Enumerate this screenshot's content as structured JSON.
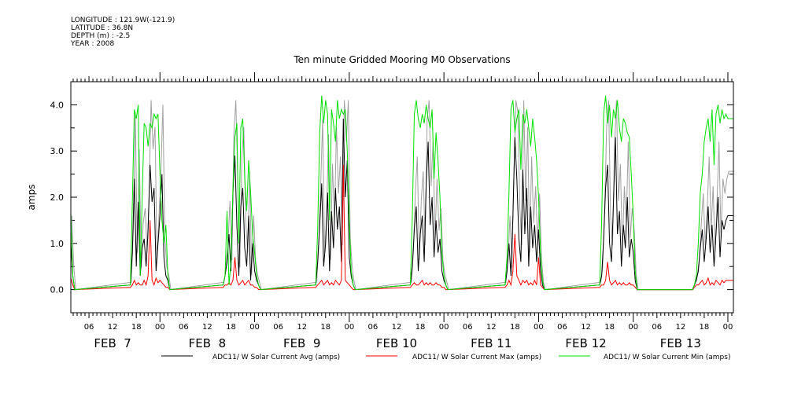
{
  "header": {
    "longitude": "LONGITUDE : 121.9W(-121.9)",
    "latitude": "LATITUDE : 36.8N",
    "depth": "DEPTH (m) : -2.5",
    "year": "YEAR : 2008"
  },
  "chart_data": {
    "type": "line",
    "title": "Ten minute Gridded Mooring M0 Observations",
    "ylabel": "amps",
    "xlabel": "",
    "x_units": "hours since FEB 7 00:00",
    "xlim": [
      1.4,
      169.4
    ],
    "ylim": [
      -0.5,
      4.5
    ],
    "yticks": [
      0.0,
      1.0,
      2.0,
      3.0,
      4.0
    ],
    "ytick_labels": [
      "0.0",
      "1.0",
      "2.0",
      "3.0",
      "4.0"
    ],
    "xtick_labels": [
      "06",
      "12",
      "18",
      "00",
      "06",
      "12",
      "18",
      "00",
      "06",
      "12",
      "18",
      "00",
      "06",
      "12",
      "18",
      "00",
      "06",
      "12",
      "18",
      "00",
      "06",
      "12",
      "18",
      "00",
      "06",
      "12",
      "18",
      "00"
    ],
    "day_labels": [
      "FEB  7",
      "FEB  8",
      "FEB  9",
      "FEB 10",
      "FEB 11",
      "FEB 12",
      "FEB 13"
    ],
    "grid": false,
    "legend_position": "bottom",
    "series": [
      {
        "name": "ADC11/ W Solar Current Avg (amps)",
        "color": "#000000",
        "segments": [
          {
            "start": 1.4,
            "step": 0.5,
            "values": [
              1.0,
              0.3,
              0.0
            ]
          },
          {
            "start": 16.5,
            "step": 0.5,
            "values": [
              0.1,
              0.8,
              2.4,
              0.5,
              1.9,
              0.3,
              0.9,
              1.1,
              0.5,
              1.3,
              2.7,
              1.9,
              2.2,
              0.4,
              1.0,
              1.6,
              2.5,
              0.7,
              0.3,
              0.2,
              0.0
            ]
          },
          {
            "start": 40.0,
            "step": 0.5,
            "values": [
              0.1,
              0.3,
              0.6,
              1.2,
              0.4,
              2.1,
              2.9,
              1.4,
              0.3,
              1.8,
              2.2,
              0.9,
              0.5,
              1.6,
              0.2,
              1.0,
              0.4,
              0.2,
              0.1,
              0.0
            ]
          },
          {
            "start": 63.5,
            "step": 0.5,
            "values": [
              0.1,
              0.6,
              1.4,
              2.3,
              0.5,
              1.0,
              2.1,
              0.4,
              1.7,
              0.9,
              2.2,
              1.3,
              1.8,
              0.6,
              3.7,
              2.0,
              2.8,
              0.7,
              0.3,
              0.1,
              0.0
            ]
          },
          {
            "start": 87.5,
            "step": 0.5,
            "values": [
              0.1,
              0.5,
              1.3,
              1.8,
              0.4,
              1.2,
              1.6,
              0.6,
              2.3,
              3.2,
              1.4,
              2.0,
              0.7,
              1.5,
              0.8,
              1.1,
              0.4,
              0.2,
              0.1,
              0.0
            ]
          },
          {
            "start": 111.5,
            "step": 0.5,
            "values": [
              0.1,
              0.4,
              1.0,
              0.3,
              1.6,
              3.3,
              2.4,
              1.1,
              0.6,
              2.6,
              1.2,
              2.2,
              0.5,
              1.8,
              0.9,
              1.4,
              0.6,
              1.3,
              0.4,
              0.1,
              0.0
            ]
          },
          {
            "start": 135.5,
            "step": 0.5,
            "values": [
              0.1,
              0.3,
              1.1,
              2.2,
              2.7,
              1.0,
              0.6,
              1.9,
              3.3,
              1.2,
              1.7,
              0.5,
              1.4,
              0.9,
              2.0,
              0.7,
              1.1,
              0.8,
              0.2,
              0.0
            ]
          },
          {
            "start": 159.0,
            "step": 0.5,
            "values": [
              0.0,
              0.1,
              0.2,
              0.4,
              0.9,
              1.3,
              0.6,
              1.1,
              1.8,
              0.8,
              1.4,
              0.5,
              1.2,
              2.0,
              0.7,
              1.5,
              1.3,
              1.5,
              1.6
            ]
          }
        ]
      },
      {
        "name": "ADC11/ W Solar Current Max (amps)",
        "color": "#ff0000",
        "segments": [
          {
            "start": 1.4,
            "step": 0.5,
            "values": [
              0.25,
              0.1,
              0.0
            ]
          },
          {
            "start": 16.5,
            "step": 0.5,
            "values": [
              0.05,
              0.1,
              0.2,
              0.1,
              0.15,
              0.1,
              0.1,
              0.2,
              0.1,
              0.3,
              1.5,
              0.2,
              0.1,
              0.25,
              0.15,
              0.2,
              0.15,
              0.1,
              0.05,
              0.05,
              0.0
            ]
          },
          {
            "start": 40.0,
            "step": 0.5,
            "values": [
              0.05,
              0.1,
              0.1,
              0.15,
              0.1,
              0.2,
              0.7,
              0.2,
              0.1,
              0.15,
              0.2,
              0.1,
              0.15,
              0.2,
              0.1,
              0.1,
              0.05,
              0.05,
              0.0,
              0.0
            ]
          },
          {
            "start": 63.5,
            "step": 0.5,
            "values": [
              0.05,
              0.1,
              0.15,
              0.2,
              0.1,
              0.15,
              0.2,
              0.1,
              0.15,
              0.1,
              0.2,
              0.15,
              0.1,
              0.2,
              2.7,
              0.2,
              0.15,
              0.1,
              0.05,
              0.0,
              0.0
            ]
          },
          {
            "start": 87.5,
            "step": 0.5,
            "values": [
              0.05,
              0.1,
              0.15,
              0.1,
              0.1,
              0.15,
              0.2,
              0.1,
              0.15,
              0.1,
              0.15,
              0.1,
              0.1,
              0.15,
              0.1,
              0.1,
              0.05,
              0.05,
              0.0,
              0.0
            ]
          },
          {
            "start": 111.5,
            "step": 0.5,
            "values": [
              0.05,
              0.1,
              0.2,
              0.1,
              0.4,
              1.2,
              0.3,
              0.2,
              0.1,
              0.2,
              0.15,
              0.2,
              0.1,
              0.15,
              0.1,
              0.2,
              0.1,
              0.7,
              0.1,
              0.05,
              0.0
            ]
          },
          {
            "start": 135.5,
            "step": 0.5,
            "values": [
              0.05,
              0.1,
              0.1,
              0.2,
              0.6,
              0.2,
              0.1,
              0.15,
              0.2,
              0.1,
              0.15,
              0.1,
              0.15,
              0.1,
              0.1,
              0.15,
              0.1,
              0.1,
              0.05,
              0.0
            ]
          },
          {
            "start": 159.0,
            "step": 0.5,
            "values": [
              0.0,
              0.05,
              0.1,
              0.1,
              0.15,
              0.2,
              0.1,
              0.15,
              0.25,
              0.1,
              0.15,
              0.1,
              0.2,
              0.15,
              0.1,
              0.2,
              0.15,
              0.2,
              0.2
            ]
          }
        ]
      },
      {
        "name": "ADC11/ W Solar Current Min (amps)",
        "color": "#00e000",
        "segments": [
          {
            "start": 1.4,
            "step": 0.5,
            "values": [
              1.65,
              0.3,
              0.0
            ]
          },
          {
            "start": 16.5,
            "step": 0.5,
            "values": [
              0.1,
              1.9,
              3.9,
              3.7,
              4.0,
              0.3,
              2.0,
              3.6,
              3.5,
              3.1,
              3.6,
              3.5,
              3.8,
              3.7,
              3.8,
              2.5,
              1.5,
              1.0,
              1.4,
              0.3,
              0.0
            ]
          },
          {
            "start": 40.0,
            "step": 0.5,
            "values": [
              0.1,
              0.3,
              1.7,
              0.1,
              0.6,
              2.2,
              3.3,
              3.6,
              1.0,
              3.5,
              3.7,
              2.4,
              1.7,
              2.8,
              2.1,
              1.2,
              0.8,
              0.3,
              0.1,
              0.0
            ]
          },
          {
            "start": 63.5,
            "step": 0.5,
            "values": [
              0.1,
              1.3,
              3.4,
              4.2,
              3.6,
              4.1,
              3.8,
              1.5,
              3.9,
              3.6,
              3.2,
              4.1,
              3.7,
              3.9,
              3.8,
              3.9,
              3.0,
              1.5,
              0.4,
              0.1,
              0.0
            ]
          },
          {
            "start": 87.5,
            "step": 0.5,
            "values": [
              0.1,
              1.6,
              3.8,
              4.1,
              3.7,
              3.5,
              3.8,
              3.6,
              4.0,
              3.7,
              3.5,
              3.9,
              2.4,
              3.4,
              2.8,
              2.0,
              0.8,
              0.3,
              0.1,
              0.0
            ]
          },
          {
            "start": 111.5,
            "step": 0.5,
            "values": [
              0.1,
              0.7,
              2.1,
              3.9,
              4.1,
              3.4,
              3.7,
              3.9,
              2.6,
              3.8,
              3.6,
              3.9,
              3.5,
              3.1,
              3.7,
              3.3,
              2.8,
              2.0,
              0.8,
              0.2,
              0.0
            ]
          },
          {
            "start": 135.5,
            "step": 0.5,
            "values": [
              0.1,
              1.5,
              3.8,
              4.2,
              3.6,
              4.0,
              3.3,
              3.9,
              3.7,
              4.1,
              3.5,
              3.2,
              3.7,
              3.6,
              3.4,
              3.3,
              2.5,
              1.6,
              0.4,
              0.0
            ]
          },
          {
            "start": 159.0,
            "step": 0.5,
            "values": [
              0.0,
              0.1,
              0.3,
              1.0,
              2.1,
              2.5,
              3.2,
              3.5,
              3.7,
              3.2,
              3.9,
              2.7,
              3.8,
              4.0,
              3.6,
              3.9,
              3.7,
              3.8,
              3.7
            ]
          }
        ]
      }
    ]
  }
}
